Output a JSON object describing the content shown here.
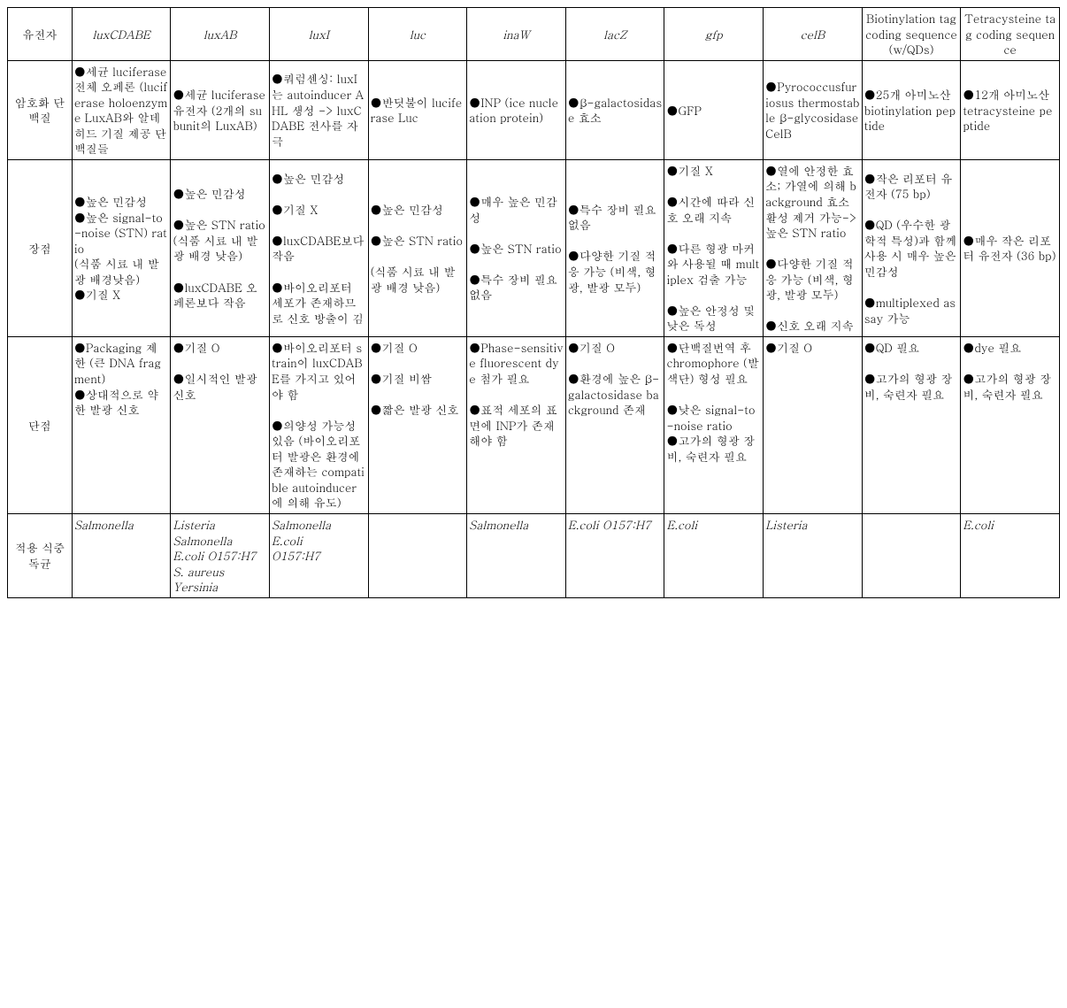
{
  "table": {
    "columns": [
      "유전자",
      "luxCDABE",
      "luxAB",
      "luxI",
      "luc",
      "inaW",
      "lacZ",
      "gfp",
      "celB",
      "Biotinylation tag coding sequence (w/QDs)",
      "Tetracysteine tag coding sequence"
    ],
    "column_italic": [
      false,
      true,
      true,
      true,
      true,
      true,
      true,
      true,
      true,
      false,
      false
    ],
    "row_labels": [
      "암호화 단백질",
      "장점",
      "단점",
      "적용 식중독균"
    ],
    "rows": [
      [
        "●세균 luciferase 전체 오페론 (luciferase holoenzyme LuxAB와 알데히드 기질 제공 단백질들",
        "●세균 luciferase 유전자 (2개의 subunit의 LuxAB)",
        "●쿼럼센싱: luxI는 autoinducer AHL 생성 -> luxCDABE 전사를 자극",
        "●반딧불이 luciferase Luc",
        "●INP (ice nucleation protein)",
        "●β-galactosidase 효소",
        "●GFP",
        "●Pyrococcusfuriosus thermostable β-glycosidase CelB",
        "●25개 아미노산 biotinylation peptide",
        "●12개 아미노산 tetracysteine peptide"
      ],
      [
        "●높은 민감성\n●높은 signal-to-noise (STN) ratio\n(식품 시료 내 발광 배경낮음)\n●기질 X",
        "●높은 민감성\n\n●높은 STN ratio (식품 시료 내 발광 배경 낮음)\n\n●luxCDABE 오페론보다 작음",
        "●높은 민감성\n\n●기질 X\n\n●luxCDABE보다 작음\n\n●바이오리포터 세포가 존재하므로   신호 방출이 김",
        "●높은 민감성\n\n●높은 STN ratio\n\n(식품 시료 내 발광 배경 낮음)",
        "●매우 높은 민감성\n\n●높은 STN ratio\n\n●특수 장비 필요 없음",
        "●특수 장비 필요 없음\n\n●다양한 기질 적응 가능 (비색, 형광, 발광 모두)",
        "●기질 X\n\n●시간에 따라 신호 오래 지속\n\n●다른 형광 마커와 사용될 때 multiplex 검출 가능\n\n●높은 안정성 및 낮은 독성",
        "●열에 안정한 효소; 가열에 의해 background 효소 활성 제거 가능-> 높은 STN ratio\n\n●다양한 기질 적응 가능 (비색, 형광, 발광 모두)\n\n●신호 오래 지속",
        "●작은 리포터 유전자 (75 bp)\n\n●QD (우수한 광학적 특성)과 함께 사용 시 매우 높은 민감성\n\n●multiplexed assay 가능",
        "●매우 작은 리포터 유전자 (36 bp)"
      ],
      [
        "●Packaging 제한 (큰 DNA fragment)\n●상대적으로 약한 발광 신호",
        "●기질 O\n\n●일시적인 발광 신호",
        "●바이오리포터 strain이 luxCDABE를 가지고 있어야 함\n\n●의양성 가능성 있음 (바이오리포터 발광은 환경에 존재하는 compatible autoinducer에 의해 유도)",
        "●기질 O\n\n●기질 비쌈\n\n●짧은 발광 신호",
        "●Phase-sensitive fluorescent dye 첨가 필요\n\n●표적 세포의 표면에 INP가 존재해야 함",
        "●기질 O\n\n●환경에 높은 β-galactosidase background 존재",
        "●단백질번역 후 chromophore (발색단) 형성 필요\n\n●낮은 signal-to-noise ratio\n●고가의 형광 장비, 숙련자 필요",
        "●기질 O",
        "●QD 필요\n\n●고가의 형광 장비, 숙련자 필요",
        "●dye 필요\n\n●고가의 형광 장비, 숙련자 필요"
      ],
      [
        "Salmonella",
        "Listeria\nSalmonella\nE.coli O157:H7\nS. aureus\nYersinia",
        "Salmonella\nE.coli\nO157:H7",
        "",
        "Salmonella",
        "E.coli O157:H7",
        "E.coli",
        "Listeria",
        "",
        "E.coli"
      ]
    ],
    "row_italic": [
      false,
      false,
      false,
      true
    ],
    "middle_rows": [
      true,
      true,
      false,
      false
    ]
  },
  "styling": {
    "background_color": "#ffffff",
    "border_color": "#000000",
    "text_color": "#000000",
    "font_size": 13,
    "font_family": "Batang, BatangChe, Malgun Gothic, serif"
  }
}
